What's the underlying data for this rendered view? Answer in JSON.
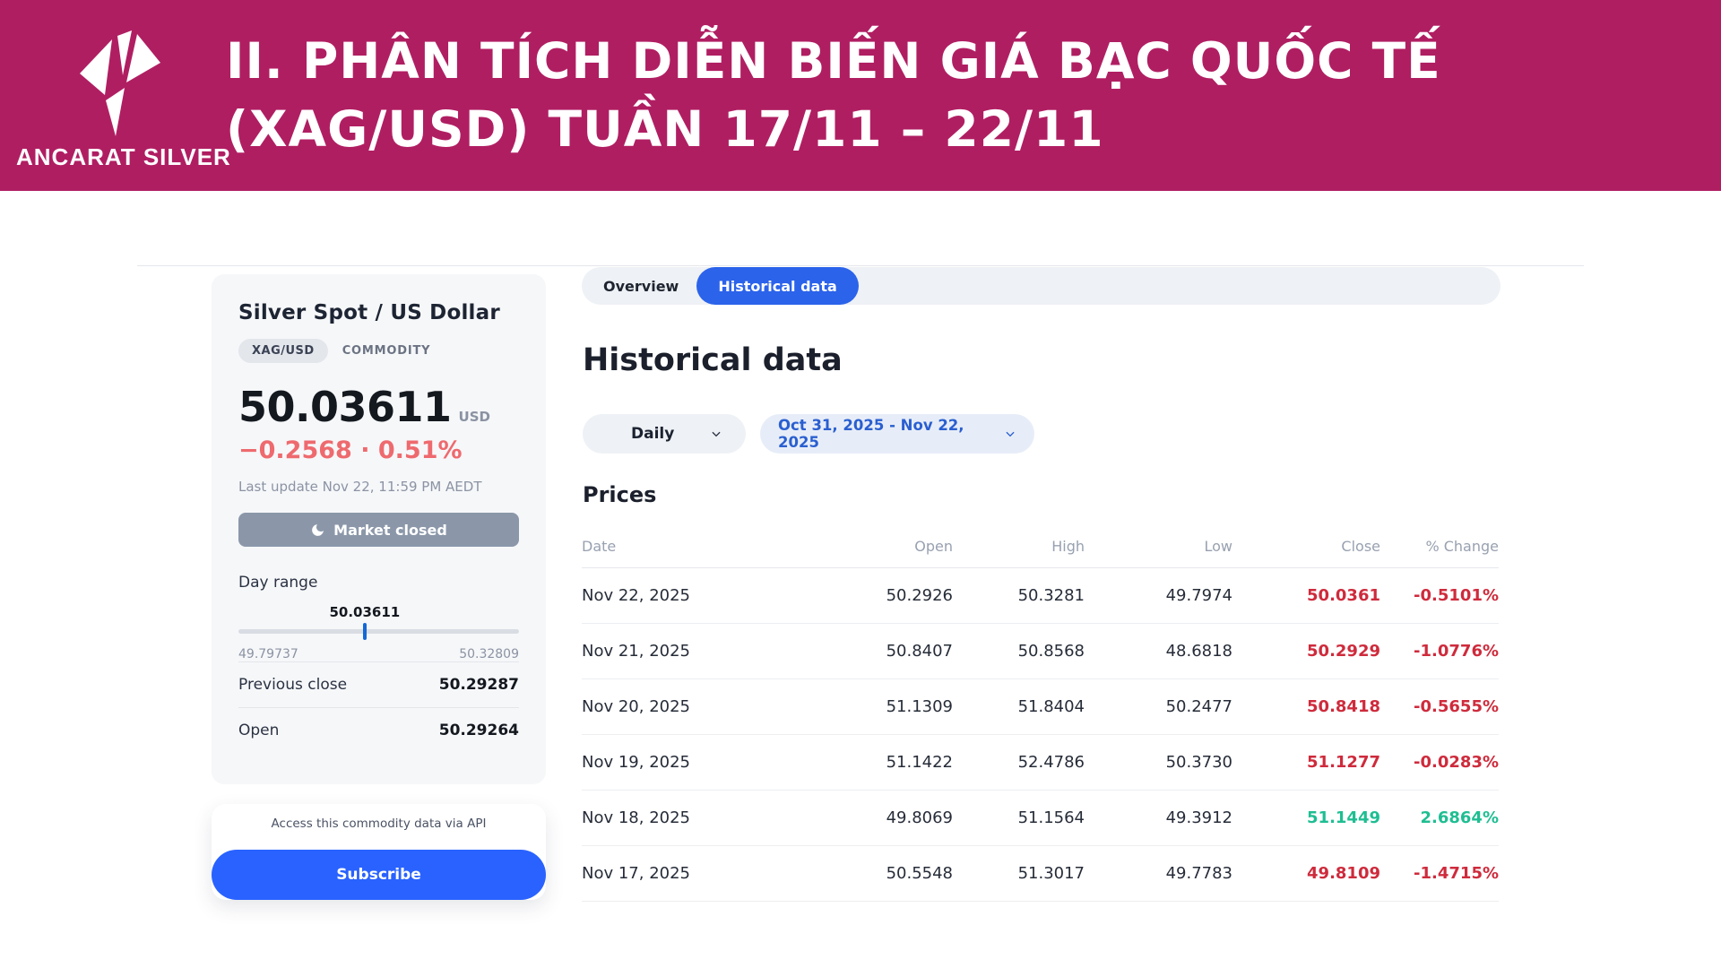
{
  "banner": {
    "brand": "ANCARAT SILVER",
    "title_line1": "II. PHÂN TÍCH DIỄN BIẾN GIÁ BẠC QUỐC TẾ",
    "title_line2": "(XAG/USD) TUẦN 17/11 – 22/11"
  },
  "sidebar": {
    "title": "Silver Spot / US Dollar",
    "symbol_badge": "XAG/USD",
    "type_label": "COMMODITY",
    "price": "50.03611",
    "currency": "USD",
    "change": "−0.2568 · 0.51%",
    "last_update": "Last update Nov 22, 11:59 PM AEDT",
    "market_status": "Market closed",
    "day_range": {
      "label": "Day range",
      "current": "50.03611",
      "low": "49.79737",
      "high": "50.32809",
      "marker_percent": 45
    },
    "stats": [
      {
        "label": "Previous close",
        "value": "50.29287"
      },
      {
        "label": "Open",
        "value": "50.29264"
      }
    ],
    "api_note": "Access this commodity data via API",
    "subscribe_label": "Subscribe"
  },
  "main": {
    "tabs": [
      {
        "label": "Overview",
        "active": false
      },
      {
        "label": "Historical data",
        "active": true
      }
    ],
    "heading": "Historical data",
    "interval_selected": "Daily",
    "date_range": "Oct 31, 2025 - Nov 22, 2025",
    "prices_heading": "Prices",
    "table": {
      "columns": [
        "Date",
        "Open",
        "High",
        "Low",
        "Close",
        "% Change"
      ],
      "rows": [
        {
          "date": "Nov 22, 2025",
          "open": "50.2926",
          "high": "50.3281",
          "low": "49.7974",
          "close": "50.0361",
          "change": "-0.5101%",
          "direction": "down"
        },
        {
          "date": "Nov 21, 2025",
          "open": "50.8407",
          "high": "50.8568",
          "low": "48.6818",
          "close": "50.2929",
          "change": "-1.0776%",
          "direction": "down"
        },
        {
          "date": "Nov 20, 2025",
          "open": "51.1309",
          "high": "51.8404",
          "low": "50.2477",
          "close": "50.8418",
          "change": "-0.5655%",
          "direction": "down"
        },
        {
          "date": "Nov 19, 2025",
          "open": "51.1422",
          "high": "52.4786",
          "low": "50.3730",
          "close": "51.1277",
          "change": "-0.0283%",
          "direction": "down"
        },
        {
          "date": "Nov 18, 2025",
          "open": "49.8069",
          "high": "51.1564",
          "low": "49.3912",
          "close": "51.1449",
          "change": "2.6864%",
          "direction": "up"
        },
        {
          "date": "Nov 17, 2025",
          "open": "50.5548",
          "high": "51.3017",
          "low": "49.7783",
          "close": "49.8109",
          "change": "-1.4715%",
          "direction": "down"
        }
      ]
    }
  },
  "colors": {
    "banner_bg": "#B01E62",
    "accent_blue": "#2B63EA",
    "subscribe_blue": "#2962FF",
    "negative_red": "#CE2B3C",
    "positive_green": "#1FBE92",
    "sidebar_change_red": "#EE6A6E",
    "market_closed_gray": "#8B97A9"
  }
}
